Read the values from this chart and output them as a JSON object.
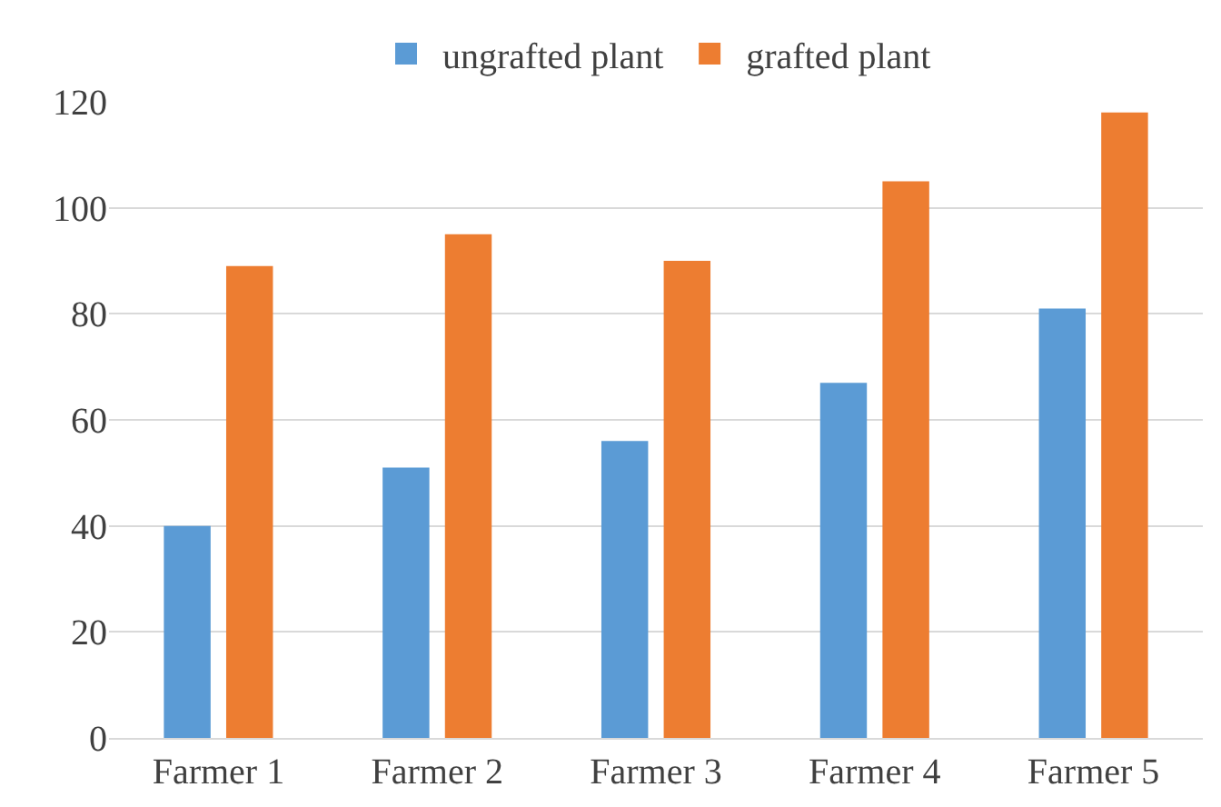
{
  "chart_data": {
    "type": "bar",
    "categories": [
      "Farmer 1",
      "Farmer 2",
      "Farmer 3",
      "Farmer 4",
      "Farmer 5"
    ],
    "series": [
      {
        "name": "ungrafted plant",
        "color": "#5b9bd5",
        "values": [
          40,
          51,
          56,
          67,
          81
        ]
      },
      {
        "name": "grafted plant",
        "color": "#ed7d31",
        "values": [
          89,
          95,
          90,
          105,
          118
        ]
      }
    ],
    "ylim": [
      0,
      120
    ],
    "yticks": [
      0,
      20,
      40,
      60,
      80,
      100,
      120
    ],
    "grid": "y",
    "legend": "top"
  }
}
